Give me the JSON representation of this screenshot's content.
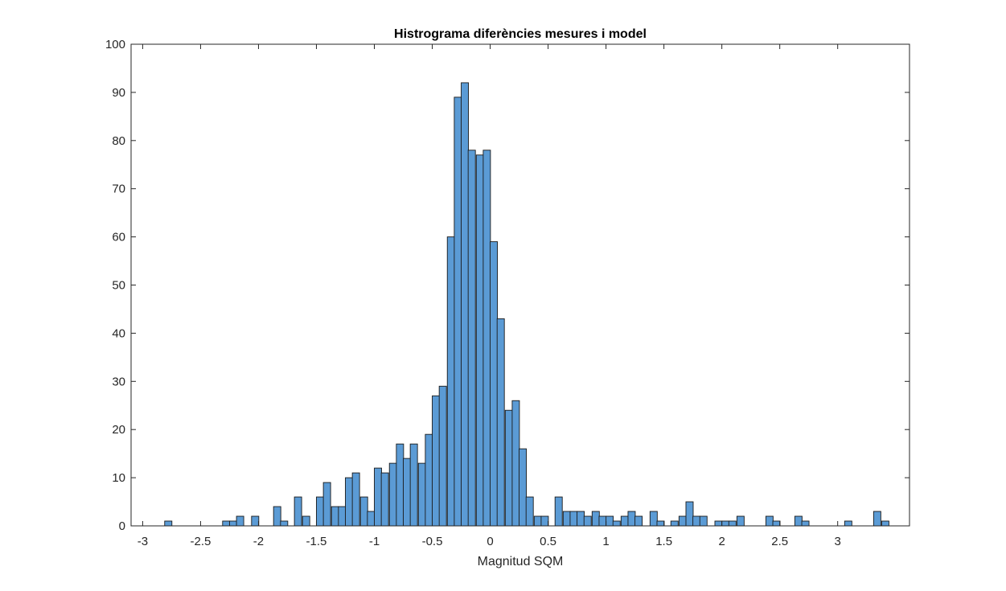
{
  "colors": {
    "bar_fill": "#5B9BD5",
    "bar_edge": "#1a1a1a",
    "axis": "#262626",
    "background": "#ffffff"
  },
  "chart_data": {
    "type": "bar",
    "title": "Histrograma diferències mesures i model",
    "xlabel": "Magnitud SQM",
    "ylabel": "",
    "xlim": [
      -3.1,
      3.62
    ],
    "ylim": [
      0,
      100
    ],
    "grid": false,
    "bin_width": 0.0625,
    "x_ticks": [
      -3,
      -2.5,
      -2,
      -1.5,
      -1,
      -0.5,
      0,
      0.5,
      1,
      1.5,
      2,
      2.5,
      3
    ],
    "x_tick_labels": [
      "-3",
      "-2.5",
      "-2",
      "-1.5",
      "-1",
      "-0.5",
      "0",
      "0.5",
      "1",
      "1.5",
      "2",
      "2.5",
      "3"
    ],
    "y_ticks": [
      0,
      10,
      20,
      30,
      40,
      50,
      60,
      70,
      80,
      90,
      100
    ],
    "y_tick_labels": [
      "0",
      "10",
      "20",
      "30",
      "40",
      "50",
      "60",
      "70",
      "80",
      "90",
      "100"
    ],
    "bins": [
      {
        "x": -2.81,
        "count": 1
      },
      {
        "x": -2.31,
        "count": 1
      },
      {
        "x": -2.25,
        "count": 1
      },
      {
        "x": -2.19,
        "count": 2
      },
      {
        "x": -2.06,
        "count": 2
      },
      {
        "x": -1.87,
        "count": 4
      },
      {
        "x": -1.81,
        "count": 1
      },
      {
        "x": -1.69,
        "count": 6
      },
      {
        "x": -1.62,
        "count": 2
      },
      {
        "x": -1.5,
        "count": 6
      },
      {
        "x": -1.44,
        "count": 9
      },
      {
        "x": -1.37,
        "count": 4
      },
      {
        "x": -1.31,
        "count": 4
      },
      {
        "x": -1.25,
        "count": 10
      },
      {
        "x": -1.19,
        "count": 11
      },
      {
        "x": -1.12,
        "count": 6
      },
      {
        "x": -1.06,
        "count": 3
      },
      {
        "x": -1.0,
        "count": 12
      },
      {
        "x": -0.94,
        "count": 11
      },
      {
        "x": -0.87,
        "count": 13
      },
      {
        "x": -0.81,
        "count": 17
      },
      {
        "x": -0.75,
        "count": 14
      },
      {
        "x": -0.69,
        "count": 17
      },
      {
        "x": -0.62,
        "count": 13
      },
      {
        "x": -0.56,
        "count": 19
      },
      {
        "x": -0.5,
        "count": 27
      },
      {
        "x": -0.44,
        "count": 29
      },
      {
        "x": -0.37,
        "count": 60
      },
      {
        "x": -0.31,
        "count": 89
      },
      {
        "x": -0.25,
        "count": 92
      },
      {
        "x": -0.19,
        "count": 78
      },
      {
        "x": -0.12,
        "count": 77
      },
      {
        "x": -0.06,
        "count": 78
      },
      {
        "x": 0.0,
        "count": 59
      },
      {
        "x": 0.06,
        "count": 43
      },
      {
        "x": 0.13,
        "count": 24
      },
      {
        "x": 0.19,
        "count": 26
      },
      {
        "x": 0.25,
        "count": 16
      },
      {
        "x": 0.31,
        "count": 6
      },
      {
        "x": 0.38,
        "count": 2
      },
      {
        "x": 0.44,
        "count": 2
      },
      {
        "x": 0.56,
        "count": 6
      },
      {
        "x": 0.63,
        "count": 3
      },
      {
        "x": 0.69,
        "count": 3
      },
      {
        "x": 0.75,
        "count": 3
      },
      {
        "x": 0.81,
        "count": 2
      },
      {
        "x": 0.88,
        "count": 3
      },
      {
        "x": 0.94,
        "count": 2
      },
      {
        "x": 1.0,
        "count": 2
      },
      {
        "x": 1.06,
        "count": 1
      },
      {
        "x": 1.13,
        "count": 2
      },
      {
        "x": 1.19,
        "count": 3
      },
      {
        "x": 1.25,
        "count": 2
      },
      {
        "x": 1.38,
        "count": 3
      },
      {
        "x": 1.44,
        "count": 1
      },
      {
        "x": 1.56,
        "count": 1
      },
      {
        "x": 1.63,
        "count": 2
      },
      {
        "x": 1.69,
        "count": 5
      },
      {
        "x": 1.75,
        "count": 2
      },
      {
        "x": 1.81,
        "count": 2
      },
      {
        "x": 1.94,
        "count": 1
      },
      {
        "x": 2.0,
        "count": 1
      },
      {
        "x": 2.06,
        "count": 1
      },
      {
        "x": 2.13,
        "count": 2
      },
      {
        "x": 2.38,
        "count": 2
      },
      {
        "x": 2.44,
        "count": 1
      },
      {
        "x": 2.63,
        "count": 2
      },
      {
        "x": 2.69,
        "count": 1
      },
      {
        "x": 3.06,
        "count": 1
      },
      {
        "x": 3.31,
        "count": 3
      },
      {
        "x": 3.38,
        "count": 1
      }
    ]
  }
}
